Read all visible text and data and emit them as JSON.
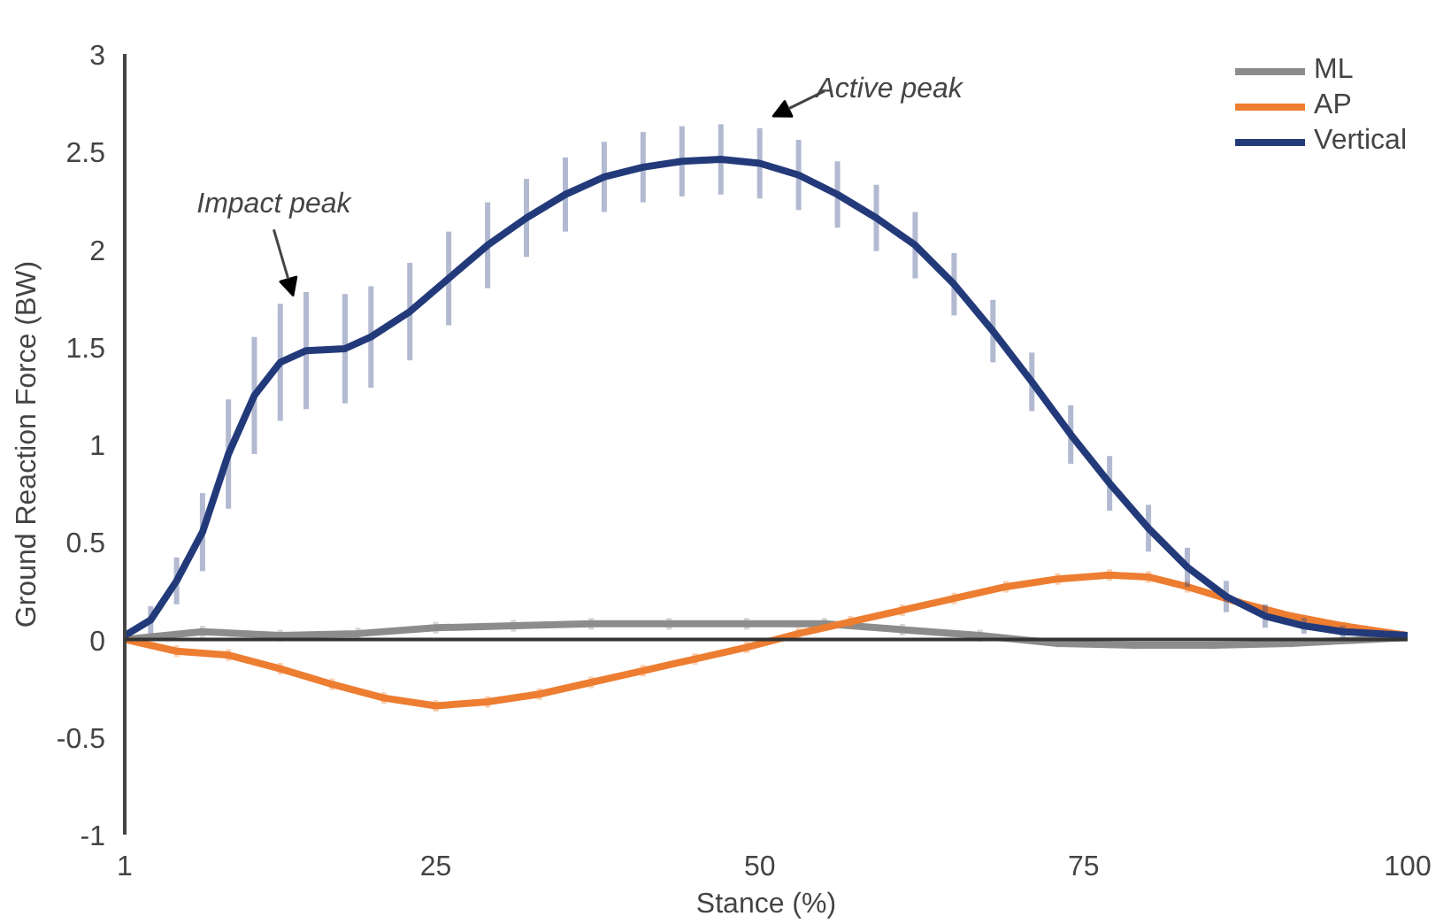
{
  "chart_data": {
    "type": "line",
    "xlabel": "Stance (%)",
    "ylabel": "Ground Reaction Force (BW)",
    "xlim": [
      1,
      100
    ],
    "xticks": [
      1,
      25,
      50,
      75,
      100
    ],
    "ylim": [
      -1,
      3
    ],
    "yticks": [
      -1,
      -0.5,
      0,
      0.5,
      1,
      1.5,
      2,
      2.5,
      3
    ],
    "grid": false,
    "legend": "top right",
    "marker": "none",
    "line_style": "solid",
    "ref_lines": [
      {
        "axis": "y",
        "value": 0,
        "color": "#333333"
      }
    ],
    "annotations": [
      "Impact peak",
      "Active peak"
    ],
    "series": [
      {
        "name": "ML",
        "color": "#8c8c8c",
        "x": [
          1,
          7,
          13,
          19,
          25,
          31,
          37,
          43,
          49,
          55,
          61,
          67,
          73,
          79,
          85,
          91,
          100
        ],
        "values": [
          0,
          0.04,
          0.02,
          0.03,
          0.06,
          0.07,
          0.08,
          0.08,
          0.08,
          0.08,
          0.05,
          0.02,
          -0.02,
          -0.03,
          -0.03,
          -0.02,
          0.01
        ],
        "errors": [
          0.01,
          0.03,
          0.03,
          0.03,
          0.03,
          0.03,
          0.03,
          0.03,
          0.03,
          0.03,
          0.03,
          0.03,
          0.02,
          0.02,
          0.02,
          0.02,
          0.01
        ]
      },
      {
        "name": "AP",
        "color": "#ed7d31",
        "x": [
          1,
          5,
          9,
          13,
          17,
          21,
          25,
          29,
          33,
          37,
          41,
          45,
          49,
          53,
          57,
          61,
          65,
          69,
          73,
          77,
          80,
          83,
          87,
          91,
          95,
          100
        ],
        "values": [
          0,
          -0.06,
          -0.08,
          -0.15,
          -0.23,
          -0.3,
          -0.34,
          -0.32,
          -0.28,
          -0.22,
          -0.16,
          -0.1,
          -0.04,
          0.03,
          0.09,
          0.15,
          0.21,
          0.27,
          0.31,
          0.33,
          0.32,
          0.27,
          0.19,
          0.12,
          0.07,
          0.02
        ],
        "errors": [
          0.01,
          0.03,
          0.03,
          0.03,
          0.03,
          0.03,
          0.03,
          0.03,
          0.03,
          0.03,
          0.03,
          0.03,
          0.03,
          0.03,
          0.03,
          0.03,
          0.03,
          0.03,
          0.03,
          0.03,
          0.03,
          0.03,
          0.02,
          0.02,
          0.02,
          0.01
        ]
      },
      {
        "name": "Vertical",
        "color": "#233a7a",
        "x": [
          1,
          3,
          5,
          7,
          9,
          11,
          13,
          15,
          18,
          20,
          23,
          26,
          29,
          32,
          35,
          38,
          41,
          44,
          47,
          50,
          53,
          56,
          59,
          62,
          65,
          68,
          71,
          74,
          77,
          80,
          83,
          86,
          89,
          92,
          95,
          100
        ],
        "values": [
          0.02,
          0.1,
          0.3,
          0.55,
          0.95,
          1.25,
          1.42,
          1.48,
          1.49,
          1.55,
          1.68,
          1.85,
          2.02,
          2.16,
          2.28,
          2.37,
          2.42,
          2.45,
          2.46,
          2.44,
          2.38,
          2.28,
          2.16,
          2.02,
          1.82,
          1.58,
          1.32,
          1.05,
          0.8,
          0.57,
          0.37,
          0.22,
          0.12,
          0.07,
          0.04,
          0.02
        ],
        "errors": [
          0.02,
          0.07,
          0.12,
          0.2,
          0.28,
          0.3,
          0.3,
          0.3,
          0.28,
          0.26,
          0.25,
          0.24,
          0.22,
          0.2,
          0.19,
          0.18,
          0.18,
          0.18,
          0.18,
          0.18,
          0.18,
          0.17,
          0.17,
          0.17,
          0.16,
          0.16,
          0.15,
          0.15,
          0.14,
          0.12,
          0.1,
          0.08,
          0.06,
          0.04,
          0.03,
          0.01
        ]
      }
    ]
  }
}
